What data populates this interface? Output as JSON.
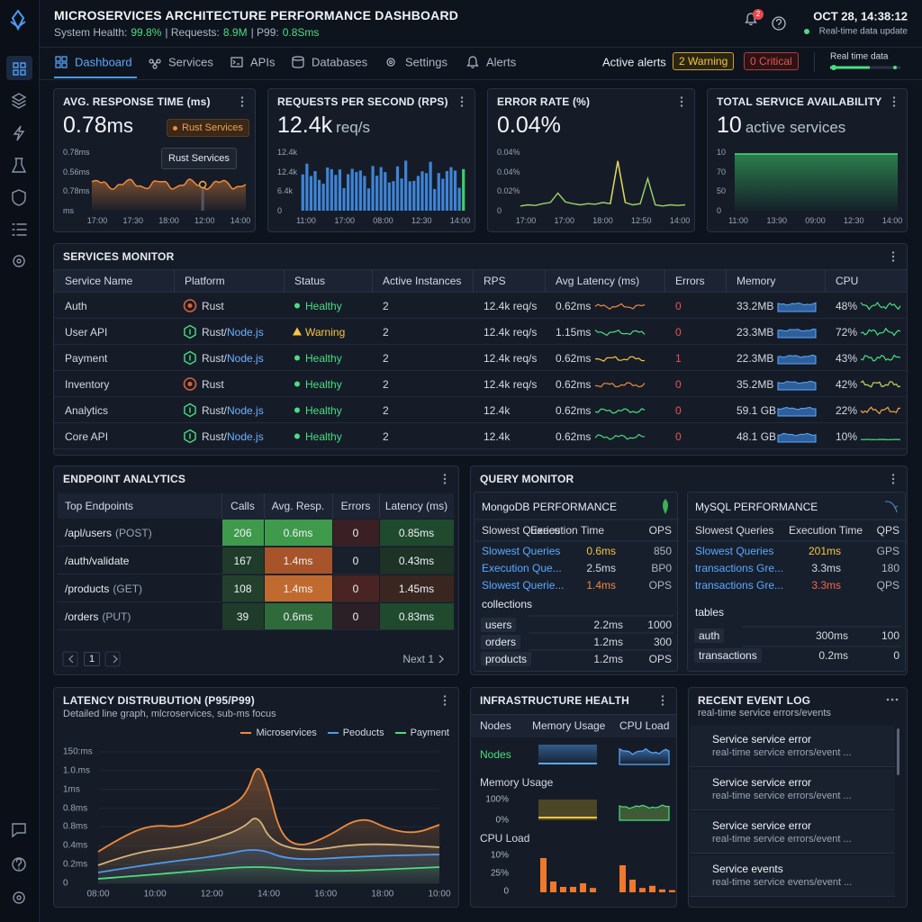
{
  "header": {
    "title": "MICROSERVICES ARCHITECTURE PERFORMANCE DASHBOARD",
    "health_label": "System Health:",
    "health_value": "99.8%",
    "requests_label": "| Requests:",
    "requests_value": "8.9M",
    "p99_label": "| P99:",
    "p99_value": "0.8Sms",
    "notifications": 2,
    "datetime": "OCT 28, 14:38:12",
    "live_status": "Real-time data update"
  },
  "nav": {
    "tabs": [
      "Dashboard",
      "Services",
      "APIs",
      "Databases",
      "Settings",
      "Alerts"
    ],
    "active_tab": 0,
    "active_alerts_label": "Active alerts",
    "warning_badge": "2 Warning",
    "critical_badge": "0 Critical",
    "realtime_label": "Real time data"
  },
  "kpis": [
    {
      "title": "AVG. RESPONSE TIME (ms)",
      "value": "0.78",
      "unit": "ms",
      "badge": "Rust Services",
      "tooltip": "Rust Services",
      "y_labels": [
        "0.78ms",
        "0.56ms",
        "0.78ms",
        "ms"
      ],
      "x_labels": [
        "17:00",
        "17:30",
        "18:00",
        "12:00",
        "14:00"
      ]
    },
    {
      "title": "REQUESTS PER SECOND (RPS)",
      "value": "12.4k",
      "unit": "req/s",
      "y_labels": [
        "12.4k",
        "12.4k",
        "6.4k",
        "0"
      ],
      "x_labels": [
        "11:00",
        "17:00",
        "08:00",
        "12:30",
        "14:00"
      ]
    },
    {
      "title": "ERROR RATE (%)",
      "value": "0.04%",
      "y_labels": [
        "0.04%",
        "0.04%",
        "0.02%",
        "0"
      ],
      "x_labels": [
        "17:00",
        "17:00",
        "18:00",
        "12:50",
        "14:00"
      ]
    },
    {
      "title": "TOTAL SERVICE AVAILABILITY",
      "value": "10",
      "unit": "active services",
      "y_labels": [
        "10",
        "70",
        "50",
        "0"
      ],
      "x_labels": [
        "11:00",
        "13:90",
        "09:00",
        "12:30",
        "14:00"
      ]
    }
  ],
  "services": {
    "title": "SERVICES MONITOR",
    "columns": [
      "Service Name",
      "Platform",
      "Status",
      "Active Instances",
      "RPS",
      "Avg Latency (ms)",
      "Errors",
      "Memory",
      "CPU"
    ],
    "healthy_color": "#4ade80",
    "warning_color": "#f5c542",
    "rows": [
      {
        "name": "Auth",
        "platform": [
          "Rust"
        ],
        "status": "Healthy",
        "warning": false,
        "instances": 2,
        "rps": "12.4k req/s",
        "latency": "0.62ms",
        "latency_color": "#f08a3c",
        "errors": 0,
        "memory": "33.2MB",
        "cpu": "48%",
        "cpu_color": "#4ade80"
      },
      {
        "name": "User API",
        "platform": [
          "Rust/",
          "Node.js"
        ],
        "status": "Warning",
        "warning": true,
        "instances": 2,
        "rps": "12.4k req/s",
        "latency": "1.15ms",
        "latency_color": "#4ade80",
        "errors": 0,
        "memory": "23.3MB",
        "cpu": "72%",
        "cpu_color": "#4ade80"
      },
      {
        "name": "Payment",
        "platform": [
          "Rust/",
          "Node.js"
        ],
        "status": "Healthy",
        "warning": false,
        "instances": 2,
        "rps": "12.4k req/s",
        "latency": "0.62ms",
        "latency_color": "#f5c542",
        "errors": 1,
        "memory": "22.3MB",
        "cpu": "43%",
        "cpu_color": "#4ade80"
      },
      {
        "name": "Inventory",
        "platform": [
          "Rust"
        ],
        "status": "Healthy",
        "warning": false,
        "instances": 2,
        "rps": "12.4k req/s",
        "latency": "0.62ms",
        "latency_color": "#f08a3c",
        "errors": 0,
        "memory": "35.2MB",
        "cpu": "42%",
        "cpu_color": "#c9d45a"
      },
      {
        "name": "Analytics",
        "platform": [
          "Rust/",
          "Node.js"
        ],
        "status": "Healthy",
        "warning": false,
        "instances": 2,
        "rps": "12.4k",
        "latency": "0.62ms",
        "latency_color": "#4ade80",
        "errors": 0,
        "memory": "59.1 GB",
        "cpu": "22%",
        "cpu_color": "#f5a742"
      },
      {
        "name": "Core API",
        "platform": [
          "Rust/",
          "Node.js"
        ],
        "status": "Healthy",
        "warning": false,
        "instances": 2,
        "rps": "12.4k",
        "latency": "0.62ms",
        "latency_color": "#4ade80",
        "errors": 0,
        "memory": "48.1 GB",
        "cpu": "10%",
        "cpu_color": "#4ade80"
      }
    ]
  },
  "endpoints": {
    "title": "ENDPOINT ANALYTICS",
    "columns": [
      "Top Endpoints",
      "Calls",
      "Avg. Resp.",
      "Errors",
      "Latency (ms)"
    ],
    "rows": [
      {
        "path": "/apl/users",
        "method": "(POST)",
        "calls": 206,
        "avg": "0.6ms",
        "errors": 0,
        "latency": "0.85ms",
        "colors": [
          "#3f9a4c",
          "#3f9a4c",
          "#3a1f24",
          "#1f4a2e"
        ]
      },
      {
        "path": "/auth/validate",
        "calls": 167,
        "avg": "1.4ms",
        "errors": 0,
        "latency": "0.43ms",
        "colors": [
          "#1f3b2a",
          "#a8542a",
          "#18202b",
          "#1c3326"
        ]
      },
      {
        "path": "/products",
        "method": "(GET)",
        "calls": 108,
        "avg": "1.4ms",
        "errors": 0,
        "latency": "1.45ms",
        "colors": [
          "#23402c",
          "#c06a2f",
          "#4a2422",
          "#3a2620"
        ]
      },
      {
        "path": "/orders",
        "method": "(PUT)",
        "calls": 39,
        "avg": "0.6ms",
        "errors": 0,
        "latency": "0.83ms",
        "colors": [
          "#1f3b2a",
          "#2f6a3a",
          "#2a2026",
          "#1f4a2e"
        ]
      }
    ],
    "page": "1",
    "next": "Next 1"
  },
  "query_monitor": {
    "title": "QUERY MONITOR",
    "mongo": {
      "title": "MongoDB PERFORMANCE",
      "columns": [
        "Slowest Queries",
        "Execution Time",
        "OPS"
      ],
      "rows": [
        {
          "query": "Slowest Queries",
          "time": "0.6ms",
          "ops": "850",
          "time_color": "#f5c542"
        },
        {
          "query": "Execution Que...",
          "time": "2.5ms",
          "ops": "BP0"
        },
        {
          "query": "Slowest Querie...",
          "time": "1.4ms",
          "ops": "OPS",
          "time_color": "#f0883e"
        }
      ],
      "section": "collections",
      "items": [
        {
          "name": "users",
          "time": "2.2ms",
          "ops": "1000"
        },
        {
          "name": "orders",
          "time": "1.2ms",
          "ops": "300"
        },
        {
          "name": "products",
          "time": "1.2ms",
          "ops": "OPS"
        }
      ]
    },
    "mysql": {
      "title": "MySQL PERFORMANCE",
      "columns": [
        "Slowest Queries",
        "Execution Time",
        "QPS"
      ],
      "rows": [
        {
          "query": "Slowest Queries",
          "time": "201ms",
          "ops": "GPS",
          "time_color": "#f5c542"
        },
        {
          "query": "transactions Gre...",
          "time": "3.3ms",
          "ops": "180"
        },
        {
          "query": "transactions Gre...",
          "time": "3.3ms",
          "ops": "QPS",
          "time_color": "#f2674a"
        }
      ],
      "section": "tables",
      "items": [
        {
          "name": "auth",
          "time": "300ms",
          "ops": "100"
        },
        {
          "name": "transactions",
          "time": "0.2ms",
          "ops": "0"
        }
      ]
    }
  },
  "latency": {
    "title": "LATENCY DISTRUBUTION (P95/P99)",
    "subtitle": "Detailed line graph, mlcroservices, sub-ms focus",
    "legend": [
      {
        "name": "Microservices",
        "color": "#f08a3c"
      },
      {
        "name": "Peoducts",
        "color": "#4d9bf0"
      },
      {
        "name": "Payment",
        "color": "#4ade80"
      }
    ],
    "y_labels": [
      "150:ms",
      "1.0.ms",
      "1ms",
      "0.8ms",
      "0.8ms",
      "0.4ms",
      "0.2ms",
      "0"
    ],
    "x_labels": [
      "08:00",
      "10:00",
      "12:00",
      "14:00",
      "16:00",
      "18:00",
      "10:00"
    ]
  },
  "infra": {
    "title": "INFRASTRUCTURE HEALTH",
    "columns": [
      "Nodes",
      "Memory Usage",
      "CPU Load"
    ],
    "nodes_label": "Nodes",
    "memory_label": "Memory Usage",
    "memory_ticks": [
      "100%",
      "0%"
    ],
    "cpu_label": "CPU Load",
    "cpu_ticks": [
      "10%",
      "25%",
      "0"
    ]
  },
  "events": {
    "title": "RECENT EVENT LOG",
    "subtitle": "real-time service errors/events",
    "items": [
      {
        "title": "Service service error",
        "detail": "real-time service errors/event ...",
        "error": true
      },
      {
        "title": "Service service error",
        "detail": "real-time service errors/event ...",
        "error": false
      },
      {
        "title": "Service service error",
        "detail": "real-time service errors/event ...",
        "error": true
      },
      {
        "title": "Service events",
        "detail": "real-time service evens/event ...",
        "error": false
      }
    ]
  }
}
